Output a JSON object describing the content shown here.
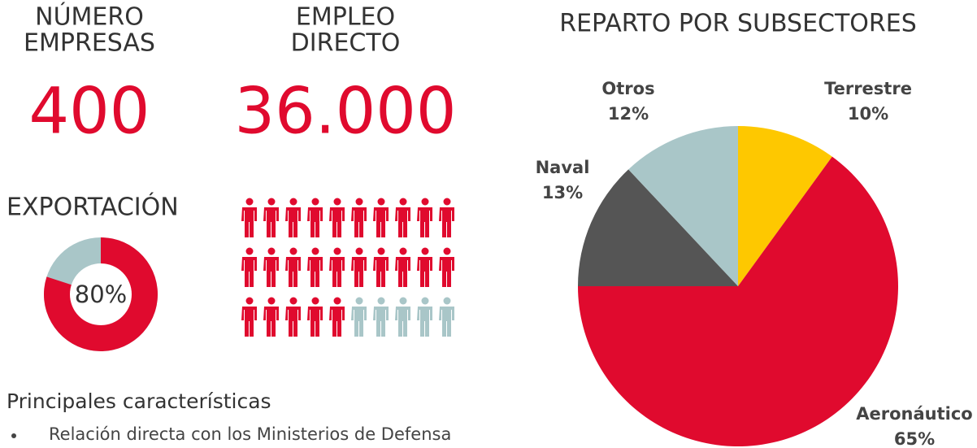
{
  "stats": [
    {
      "label_lines": [
        "NÚMERO",
        "EMPRESAS"
      ],
      "value": "400"
    },
    {
      "label_lines": [
        "EMPLEO",
        "DIRECTO"
      ],
      "value": "36.000"
    }
  ],
  "chart_data": [
    {
      "type": "donut",
      "title": "EXPORTACIÓN",
      "values": [
        80
      ],
      "value_labels": [
        "80%"
      ],
      "color": "#e00a2e",
      "track_color": "#a9c6c8"
    },
    {
      "type": "pie",
      "title": "REPARTO POR SUBSECTORES",
      "categories": [
        "Terrestre",
        "Aeronáutico",
        "Naval",
        "Otros"
      ],
      "values": [
        10,
        65,
        13,
        12
      ],
      "value_labels": [
        "10%",
        "65%",
        "13%",
        "12%"
      ],
      "colors": [
        "#fec800",
        "#e00a2e",
        "#555555",
        "#a9c6c8"
      ]
    }
  ],
  "pictogram": {
    "count": 30,
    "filled": 25,
    "color": "#e00a2e",
    "empty_color": "#a9c6c8"
  },
  "features": {
    "title": "Principales características",
    "items": [
      "Relación directa con los Ministerios de Defensa"
    ]
  }
}
